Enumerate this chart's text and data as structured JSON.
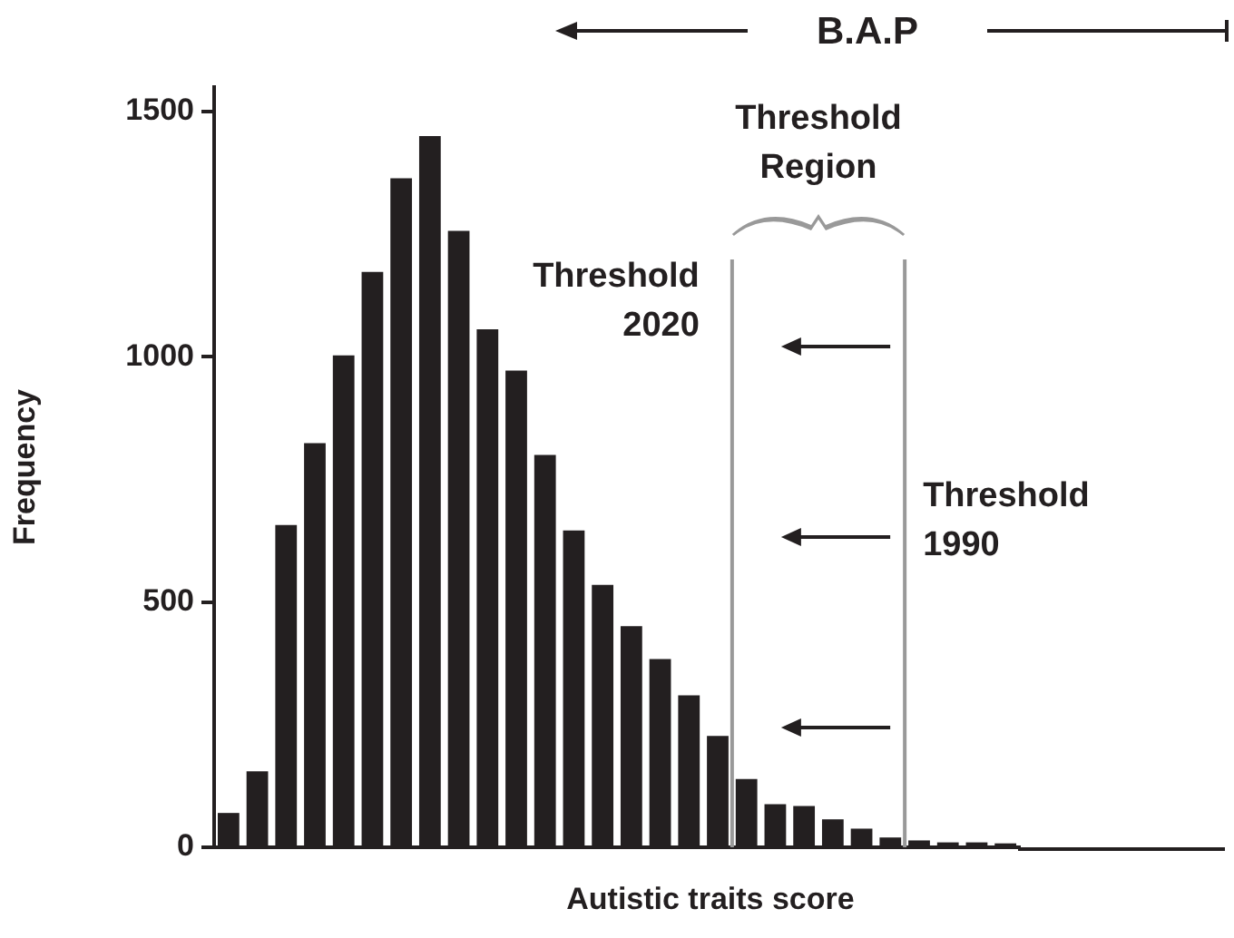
{
  "chart_data": {
    "type": "bar",
    "xlabel": "Autistic traits score",
    "ylabel": "Frequency",
    "categories": [
      null,
      null,
      null,
      null,
      null,
      null,
      null,
      null,
      null,
      null,
      null,
      null,
      null,
      null,
      null,
      null,
      null,
      null,
      null,
      null,
      null,
      null,
      null,
      null,
      null,
      null,
      null,
      null
    ],
    "values": [
      70,
      155,
      657,
      824,
      1003,
      1173,
      1364,
      1450,
      1257,
      1056,
      972,
      800,
      646,
      535,
      451,
      384,
      310,
      227,
      139,
      88,
      84,
      57,
      38,
      20,
      14,
      10,
      10,
      8
    ],
    "color": "#231f20",
    "ylim": [
      0,
      1550
    ],
    "yticks": [
      0,
      500,
      1000,
      1500
    ],
    "tick_labels": "y",
    "grid": false,
    "legend": false,
    "annotations": [
      "B.A.P",
      "Threshold Region",
      "Threshold 2020",
      "Threshold 1990"
    ]
  }
}
